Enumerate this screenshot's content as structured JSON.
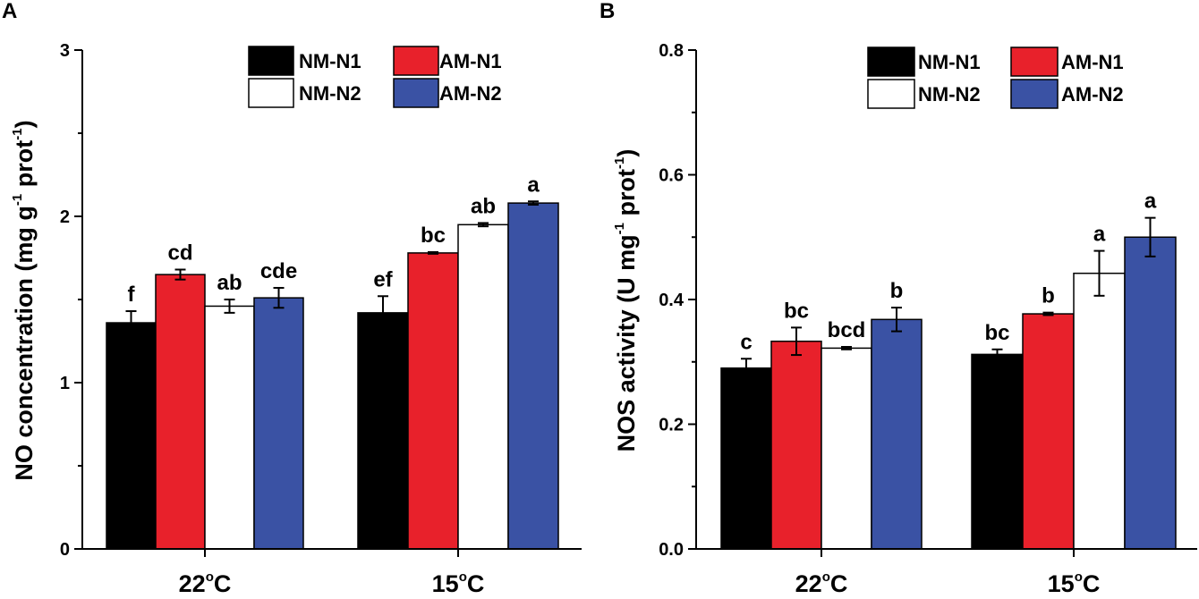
{
  "panels": [
    {
      "letter": "A"
    },
    {
      "letter": "B"
    }
  ],
  "colors": {
    "NM-N1": "#000000",
    "AM-N1": "#e8212b",
    "NM-N2": "#ffffff",
    "AM-N2": "#3a52a4"
  },
  "chart_data": [
    {
      "type": "bar",
      "panel": "A",
      "ylabel_main": "NO concentration (mg g",
      "ylabel_sup1": "-1",
      "ylabel_mid": " prot",
      "ylabel_sup2": "-1",
      "ylabel_end": ")",
      "ylim": [
        0,
        3
      ],
      "yticks": [
        0,
        1,
        2,
        3
      ],
      "yticks_labels": [
        "0",
        "1",
        "2",
        "3"
      ],
      "categories": [
        {
          "base": "22",
          "sup": "o",
          "unit": "C"
        },
        {
          "base": "15",
          "sup": "o",
          "unit": "C"
        }
      ],
      "series": [
        {
          "name": "NM-N1",
          "values": [
            1.36,
            1.42
          ],
          "errors": [
            0.07,
            0.1
          ],
          "labels": [
            "f",
            "ef"
          ]
        },
        {
          "name": "AM-N1",
          "values": [
            1.65,
            1.78
          ],
          "errors": [
            0.03,
            0.005
          ],
          "labels": [
            "cd",
            "bc"
          ]
        },
        {
          "name": "NM-N2",
          "values": [
            1.46,
            1.95
          ],
          "errors": [
            0.04,
            0.01
          ],
          "labels": [
            "ab",
            "ab"
          ]
        },
        {
          "name": "AM-N2",
          "values": [
            1.51,
            2.08
          ],
          "errors": [
            0.06,
            0.01
          ],
          "labels": [
            "cde",
            "a"
          ]
        }
      ],
      "legend": [
        "NM-N1",
        "AM-N1",
        "NM-N2",
        "AM-N2"
      ],
      "legend_position": "top-right"
    },
    {
      "type": "bar",
      "panel": "B",
      "ylabel_main": "NOS activity (U mg",
      "ylabel_sup1": "-1",
      "ylabel_mid": " prot",
      "ylabel_sup2": "-1",
      "ylabel_end": ")",
      "ylim": [
        0,
        0.8
      ],
      "yticks": [
        0,
        0.2,
        0.4,
        0.6,
        0.8
      ],
      "yticks_labels": [
        "0.0",
        "0.2",
        "0.4",
        "0.6",
        "0.8"
      ],
      "categories": [
        {
          "base": "22",
          "sup": "o",
          "unit": "C"
        },
        {
          "base": "15",
          "sup": "o",
          "unit": "C"
        }
      ],
      "series": [
        {
          "name": "NM-N1",
          "values": [
            0.29,
            0.312
          ],
          "errors": [
            0.015,
            0.008
          ],
          "labels": [
            "c",
            "bc"
          ]
        },
        {
          "name": "AM-N1",
          "values": [
            0.333,
            0.377
          ],
          "errors": [
            0.022,
            0.002
          ],
          "labels": [
            "bc",
            "b"
          ]
        },
        {
          "name": "NM-N2",
          "values": [
            0.322,
            0.442
          ],
          "errors": [
            0.002,
            0.036
          ],
          "labels": [
            "bcd",
            "a"
          ]
        },
        {
          "name": "AM-N2",
          "values": [
            0.368,
            0.5
          ],
          "errors": [
            0.019,
            0.031
          ],
          "labels": [
            "b",
            "a"
          ]
        }
      ],
      "legend": [
        "NM-N1",
        "AM-N1",
        "NM-N2",
        "AM-N2"
      ],
      "legend_position": "top-right"
    }
  ]
}
